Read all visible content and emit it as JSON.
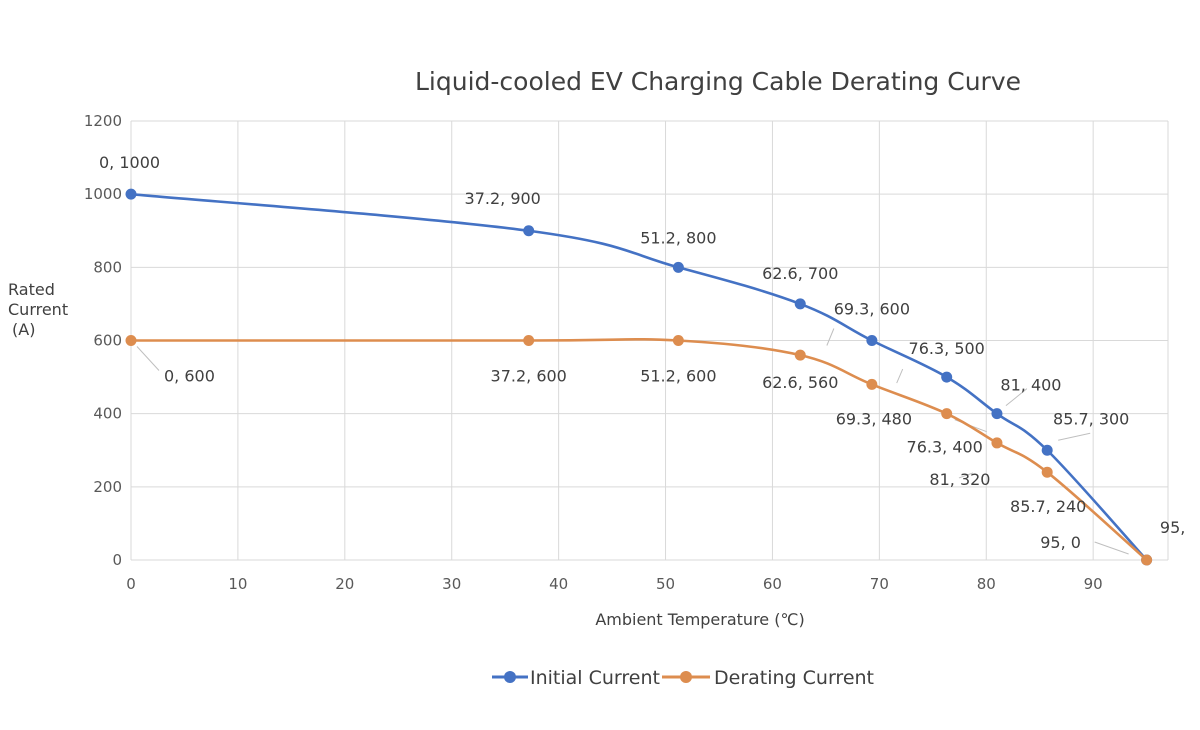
{
  "chart_data": {
    "type": "line",
    "title": "Liquid-cooled EV Charging Cable Derating Curve",
    "xlabel": "Ambient Temperature (℃)",
    "ylabel_lines": [
      "Rated",
      "Current",
      "(A)"
    ],
    "xlim": [
      0,
      97
    ],
    "ylim": [
      0,
      1200
    ],
    "xticks": [
      0,
      10,
      20,
      30,
      40,
      50,
      60,
      70,
      80,
      90
    ],
    "yticks": [
      0,
      200,
      400,
      600,
      800,
      1000,
      1200
    ],
    "grid": true,
    "legend_position": "bottom",
    "series": [
      {
        "name": "Initial Current",
        "color": "#4472c4",
        "points": [
          {
            "x": 0,
            "y": 1000,
            "label": "0, 1000"
          },
          {
            "x": 37.2,
            "y": 900,
            "label": "37.2, 900"
          },
          {
            "x": 51.2,
            "y": 800,
            "label": "51.2, 800"
          },
          {
            "x": 62.6,
            "y": 700,
            "label": "62.6, 700"
          },
          {
            "x": 69.3,
            "y": 600,
            "label": "69.3, 600"
          },
          {
            "x": 76.3,
            "y": 500,
            "label": "76.3, 500"
          },
          {
            "x": 81,
            "y": 400,
            "label": "81, 400"
          },
          {
            "x": 85.7,
            "y": 300,
            "label": "85.7, 300"
          },
          {
            "x": 95,
            "y": 0,
            "label": "95,"
          }
        ]
      },
      {
        "name": "Derating Current",
        "color": "#dd8d4f",
        "points": [
          {
            "x": 0,
            "y": 600,
            "label": "0, 600"
          },
          {
            "x": 37.2,
            "y": 600,
            "label": "37.2, 600"
          },
          {
            "x": 51.2,
            "y": 600,
            "label": "51.2, 600"
          },
          {
            "x": 62.6,
            "y": 560,
            "label": "62.6, 560"
          },
          {
            "x": 69.3,
            "y": 480,
            "label": "69.3, 480"
          },
          {
            "x": 76.3,
            "y": 400,
            "label": "76.3, 400"
          },
          {
            "x": 81,
            "y": 320,
            "label": "81, 320"
          },
          {
            "x": 85.7,
            "y": 240,
            "label": "85.7, 240"
          },
          {
            "x": 95,
            "y": 0,
            "label": "95, 0"
          }
        ]
      }
    ]
  }
}
